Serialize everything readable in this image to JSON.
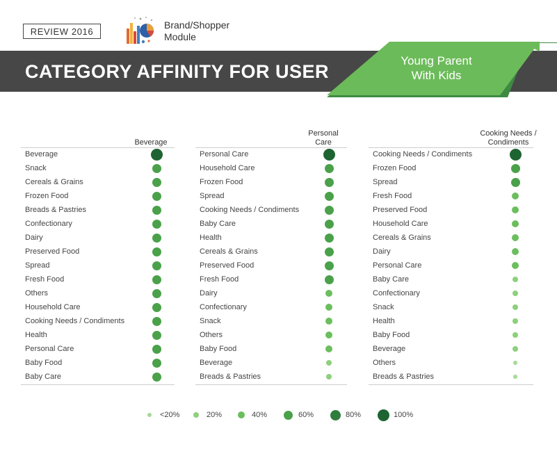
{
  "header": {
    "review_label": "REVIEW 2016",
    "module_icon": "chart-collage-icon",
    "module_label_line1": "Brand/Shopper",
    "module_label_line2": "Module"
  },
  "banner": {
    "title": "CATEGORY AFFINITY FOR USER",
    "segment_line1": "Young Parent",
    "segment_line2": "With Kids"
  },
  "colors": {
    "banner_bg": "#474747",
    "ribbon_green": "#6cbb5a",
    "ribbon_dark_green": "#3f8a43",
    "level_lt20": "#a6da96",
    "level_20": "#8ed07c",
    "level_40": "#6bbe5d",
    "level_60": "#4aa14a",
    "level_80": "#2f7d3c",
    "level_100": "#1e6432"
  },
  "panels": [
    {
      "header_line1": "",
      "header_line2": "Beverage",
      "rows": [
        {
          "label": "Beverage",
          "level": 100
        },
        {
          "label": "Snack",
          "level": 60
        },
        {
          "label": "Cereals & Grains",
          "level": 60
        },
        {
          "label": "Frozen Food",
          "level": 60
        },
        {
          "label": "Breads & Pastries",
          "level": 60
        },
        {
          "label": "Confectionary",
          "level": 60
        },
        {
          "label": "Dairy",
          "level": 60
        },
        {
          "label": "Preserved Food",
          "level": 60
        },
        {
          "label": "Spread",
          "level": 60
        },
        {
          "label": "Fresh Food",
          "level": 60
        },
        {
          "label": "Others",
          "level": 60
        },
        {
          "label": "Household Care",
          "level": 60
        },
        {
          "label": "Cooking Needs / Condiments",
          "level": 60
        },
        {
          "label": "Health",
          "level": 60
        },
        {
          "label": "Personal Care",
          "level": 60
        },
        {
          "label": "Baby Food",
          "level": 60
        },
        {
          "label": "Baby Care",
          "level": 60
        }
      ]
    },
    {
      "header_line1": "Personal",
      "header_line2": "Care",
      "rows": [
        {
          "label": "Personal Care",
          "level": 100
        },
        {
          "label": "Household Care",
          "level": 60
        },
        {
          "label": "Frozen Food",
          "level": 60
        },
        {
          "label": "Spread",
          "level": 60
        },
        {
          "label": "Cooking Needs / Condiments",
          "level": 60
        },
        {
          "label": "Baby Care",
          "level": 60
        },
        {
          "label": "Health",
          "level": 60
        },
        {
          "label": "Cereals & Grains",
          "level": 60
        },
        {
          "label": "Preserved Food",
          "level": 60
        },
        {
          "label": "Fresh Food",
          "level": 60
        },
        {
          "label": "Dairy",
          "level": 40
        },
        {
          "label": "Confectionary",
          "level": 40
        },
        {
          "label": "Snack",
          "level": 40
        },
        {
          "label": "Others",
          "level": 40
        },
        {
          "label": "Baby Food",
          "level": 40
        },
        {
          "label": "Beverage",
          "level": 20
        },
        {
          "label": "Breads & Pastries",
          "level": 20
        }
      ]
    },
    {
      "header_line1": "Cooking Needs /",
      "header_line2": "Condiments",
      "rows": [
        {
          "label": "Cooking Needs / Condiments",
          "level": 100
        },
        {
          "label": "Frozen Food",
          "level": 60
        },
        {
          "label": "Spread",
          "level": 60
        },
        {
          "label": "Fresh Food",
          "level": 40
        },
        {
          "label": "Preserved Food",
          "level": 40
        },
        {
          "label": "Household Care",
          "level": 40
        },
        {
          "label": "Cereals & Grains",
          "level": 40
        },
        {
          "label": "Dairy",
          "level": 40
        },
        {
          "label": "Personal Care",
          "level": 40
        },
        {
          "label": "Baby Care",
          "level": 20
        },
        {
          "label": "Confectionary",
          "level": 20
        },
        {
          "label": "Snack",
          "level": 20
        },
        {
          "label": "Health",
          "level": 20
        },
        {
          "label": "Baby Food",
          "level": 20
        },
        {
          "label": "Beverage",
          "level": 20
        },
        {
          "label": "Others",
          "level": 0
        },
        {
          "label": "Breads & Pastries",
          "level": 0
        }
      ]
    }
  ],
  "legend": [
    {
      "label": "<20%",
      "level": 0
    },
    {
      "label": "20%",
      "level": 20
    },
    {
      "label": "40%",
      "level": 40
    },
    {
      "label": "60%",
      "level": 60
    },
    {
      "label": "80%",
      "level": 80
    },
    {
      "label": "100%",
      "level": 100
    }
  ]
}
